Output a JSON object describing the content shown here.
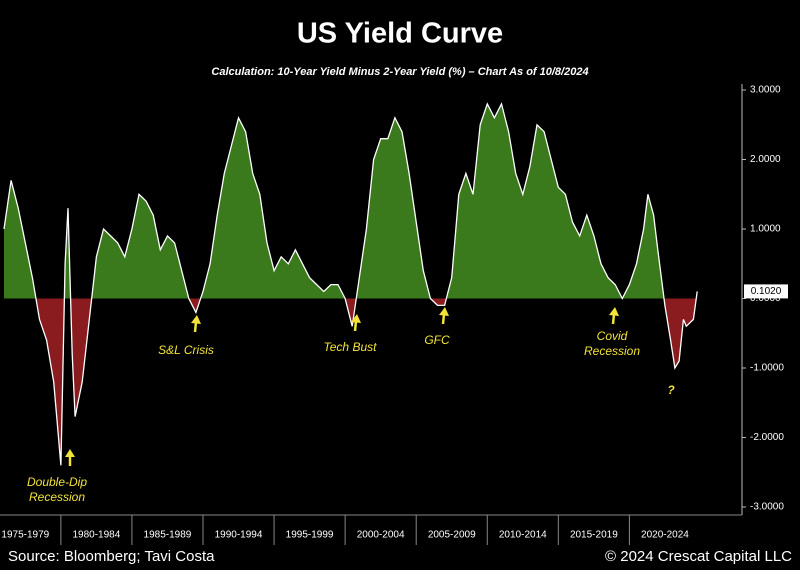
{
  "chart_data": {
    "type": "area",
    "title": "US Yield Curve",
    "subtitle": "Calculation: 10-Year Yield Minus 2-Year Yield (%) – Chart As of 10/8/2024",
    "source": "Source: Bloomberg; Tavi Costa",
    "copyright": "© 2024 Crescat Capital LLC",
    "positive_color": "#3b7a1c",
    "negative_color": "#8a1c1f",
    "line_color": "#ffffff",
    "x": [
      1976.0,
      1976.5,
      1977.0,
      1977.5,
      1978.0,
      1978.5,
      1979.0,
      1979.5,
      1980.0,
      1980.3,
      1980.5,
      1980.8,
      1981.0,
      1981.5,
      1982.0,
      1982.5,
      1983.0,
      1983.5,
      1984.0,
      1984.5,
      1985.0,
      1985.5,
      1986.0,
      1986.5,
      1987.0,
      1987.5,
      1988.0,
      1988.5,
      1989.0,
      1989.5,
      1990.0,
      1990.5,
      1991.0,
      1991.5,
      1992.0,
      1992.5,
      1993.0,
      1993.5,
      1994.0,
      1994.5,
      1995.0,
      1995.5,
      1996.0,
      1996.5,
      1997.0,
      1997.5,
      1998.0,
      1998.5,
      1999.0,
      1999.5,
      2000.0,
      2000.5,
      2001.0,
      2001.5,
      2002.0,
      2002.5,
      2003.0,
      2003.5,
      2004.0,
      2004.5,
      2005.0,
      2005.5,
      2006.0,
      2006.5,
      2007.0,
      2007.5,
      2008.0,
      2008.5,
      2009.0,
      2009.5,
      2010.0,
      2010.5,
      2011.0,
      2011.5,
      2012.0,
      2012.5,
      2013.0,
      2013.5,
      2014.0,
      2014.5,
      2015.0,
      2015.5,
      2016.0,
      2016.5,
      2017.0,
      2017.5,
      2018.0,
      2018.5,
      2019.0,
      2019.5,
      2020.0,
      2020.5,
      2021.0,
      2021.3,
      2021.7,
      2022.0,
      2022.5,
      2022.9,
      2023.2,
      2023.5,
      2023.8,
      2024.0,
      2024.5,
      2024.77
    ],
    "values": [
      1.0,
      1.7,
      1.3,
      0.8,
      0.3,
      -0.3,
      -0.6,
      -1.2,
      -2.4,
      0.5,
      1.3,
      -0.8,
      -1.7,
      -1.2,
      -0.3,
      0.6,
      1.0,
      0.9,
      0.8,
      0.6,
      1.0,
      1.5,
      1.4,
      1.2,
      0.7,
      0.9,
      0.8,
      0.4,
      0.0,
      -0.2,
      0.1,
      0.5,
      1.2,
      1.8,
      2.2,
      2.6,
      2.4,
      1.8,
      1.5,
      0.8,
      0.4,
      0.6,
      0.5,
      0.7,
      0.5,
      0.3,
      0.2,
      0.1,
      0.2,
      0.2,
      0.0,
      -0.4,
      0.3,
      1.0,
      2.0,
      2.3,
      2.3,
      2.6,
      2.4,
      1.8,
      1.1,
      0.4,
      0.0,
      -0.1,
      -0.1,
      0.3,
      1.5,
      1.8,
      1.5,
      2.5,
      2.8,
      2.6,
      2.8,
      2.4,
      1.8,
      1.5,
      1.9,
      2.5,
      2.4,
      2.0,
      1.6,
      1.5,
      1.1,
      0.9,
      1.2,
      0.9,
      0.5,
      0.3,
      0.2,
      0.0,
      0.2,
      0.5,
      1.0,
      1.5,
      1.2,
      0.7,
      -0.1,
      -0.6,
      -1.0,
      -0.9,
      -0.3,
      -0.4,
      -0.3,
      0.102
    ],
    "last_value_label": "0.1020",
    "xlim": [
      1976,
      2027.5
    ],
    "xticks": [
      {
        "value": 1977.5,
        "label": "1975-1979"
      },
      {
        "value": 1982.5,
        "label": "1980-1984"
      },
      {
        "value": 1987.5,
        "label": "1985-1989"
      },
      {
        "value": 1992.5,
        "label": "1990-1994"
      },
      {
        "value": 1997.5,
        "label": "1995-1999"
      },
      {
        "value": 2002.5,
        "label": "2000-2004"
      },
      {
        "value": 2007.5,
        "label": "2005-2009"
      },
      {
        "value": 2012.5,
        "label": "2010-2014"
      },
      {
        "value": 2017.5,
        "label": "2015-2019"
      },
      {
        "value": 2022.5,
        "label": "2020-2024"
      }
    ],
    "ylim": [
      -3,
      3
    ],
    "yticks": [
      {
        "value": 3,
        "label": "3.0000"
      },
      {
        "value": 2,
        "label": "2.0000"
      },
      {
        "value": 1,
        "label": "1.0000"
      },
      {
        "value": 0,
        "label": "0.0000"
      },
      {
        "value": -1,
        "label": "-1.0000"
      },
      {
        "value": -2,
        "label": "-2.0000"
      },
      {
        "value": -3,
        "label": "-3.0000"
      }
    ],
    "annotations": [
      [
        "Double-Dip",
        "Recession"
      ],
      [
        "S&L Crisis"
      ],
      [
        "Tech Bust"
      ],
      [
        "GFC"
      ],
      [
        "Covid",
        "Recession"
      ],
      [
        "?"
      ]
    ]
  }
}
